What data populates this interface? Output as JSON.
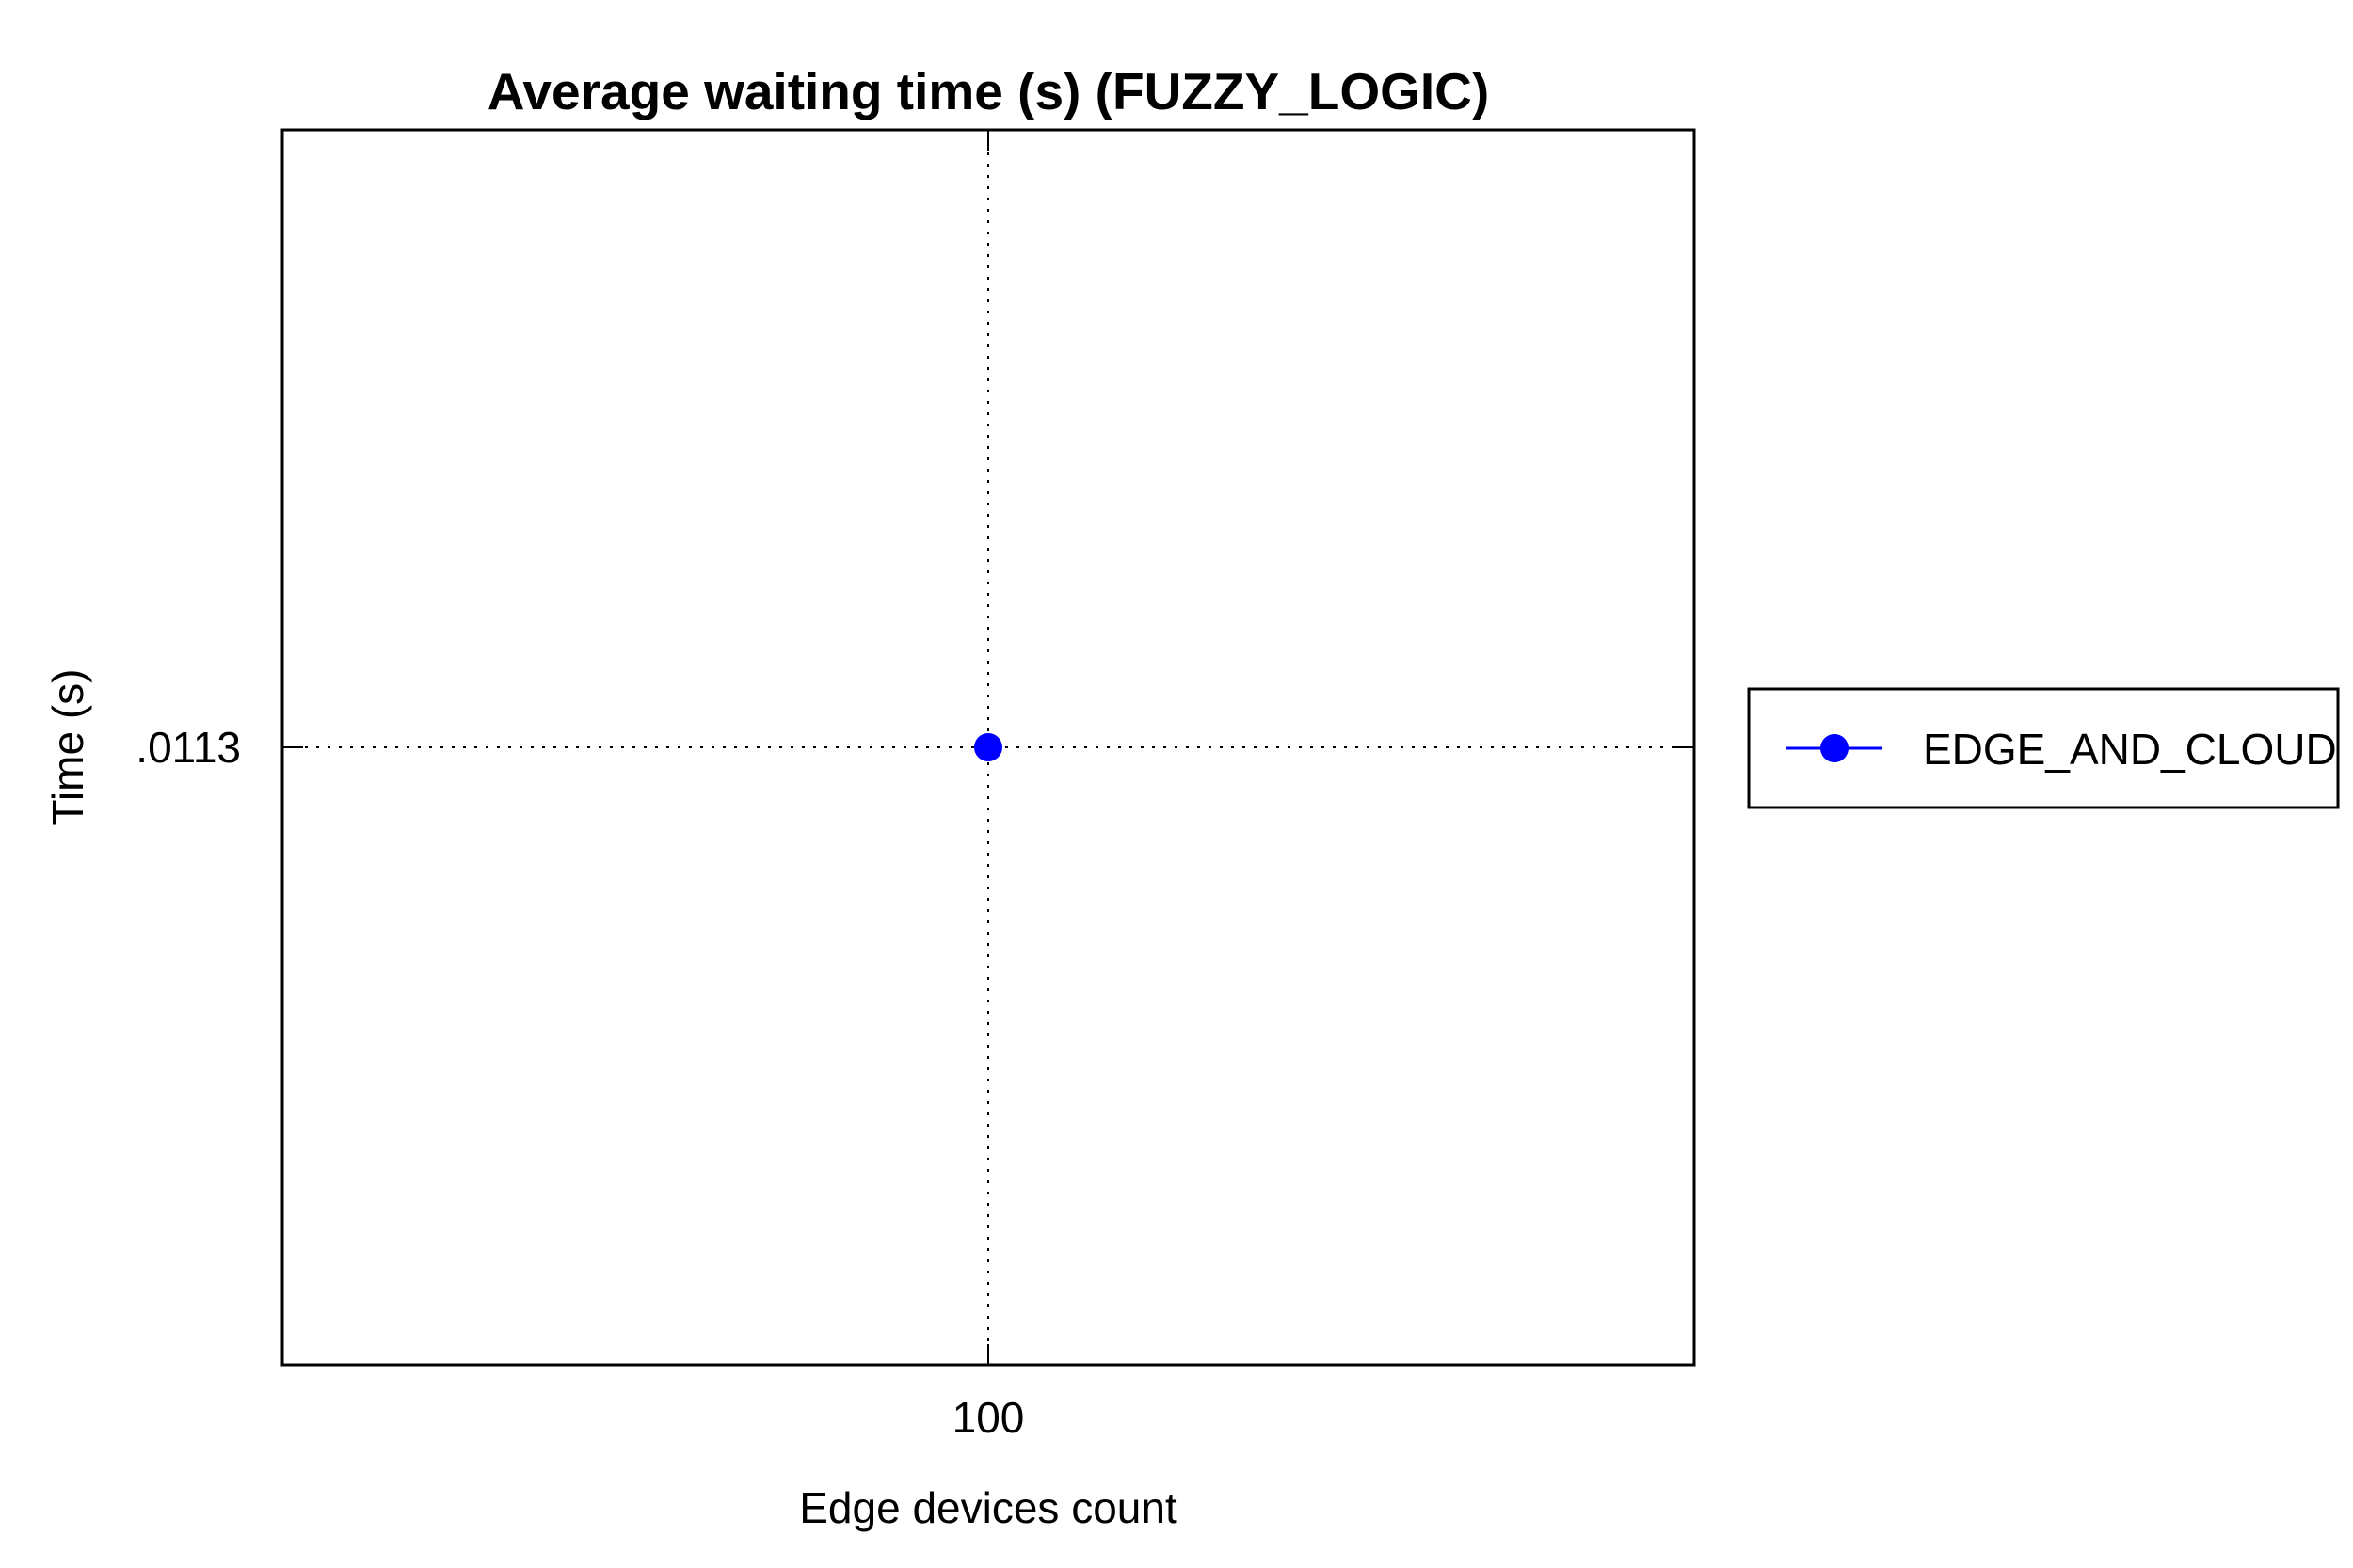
{
  "chart_data": {
    "type": "scatter",
    "title": "Average waiting time (s) (FUZZY_LOGIC)",
    "xlabel": "Edge devices count",
    "ylabel": "Time (s)",
    "x_ticks": [
      {
        "value": 100,
        "label": "100"
      }
    ],
    "y_ticks": [
      {
        "value": 0.0113,
        "label": ".0113"
      }
    ],
    "xlim": [
      99,
      101
    ],
    "ylim": [
      0.0103,
      0.0123
    ],
    "grid": true,
    "legend_position": "right",
    "series": [
      {
        "name": "EDGE_AND_CLOUD",
        "color": "#0000ff",
        "marker": "circle",
        "points": [
          {
            "x": 100,
            "y": 0.0113
          }
        ]
      }
    ]
  }
}
